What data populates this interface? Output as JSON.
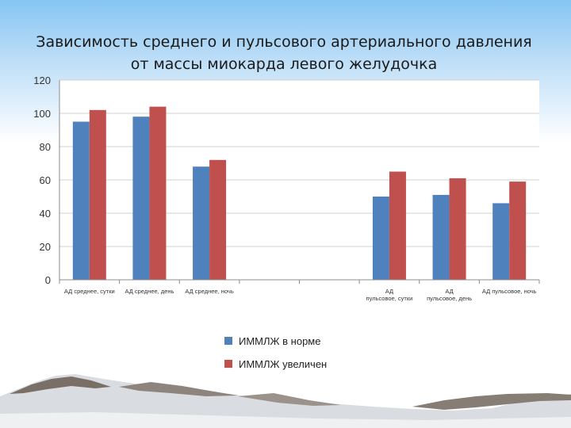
{
  "chart_data": {
    "type": "bar",
    "title_lines": [
      "Зависимость среднего и пульсового артериального давления",
      "от массы миокарда левого желудочка"
    ],
    "categories": [
      [
        "АД среднее, сутки"
      ],
      [
        "АД среднее, день"
      ],
      [
        "АД среднее, ночь"
      ],
      [
        ""
      ],
      [
        ""
      ],
      [
        "АД",
        "пульсовое, сутки"
      ],
      [
        "АД",
        "пульсовое, день"
      ],
      [
        "АД пульсовое, ночь"
      ]
    ],
    "series": [
      {
        "name": "ИММЛЖ в норме",
        "color": "#4f81bd",
        "values": [
          95,
          98,
          68,
          null,
          null,
          50,
          51,
          46
        ]
      },
      {
        "name": "ИММЛЖ увеличен",
        "color": "#c0504d",
        "values": [
          102,
          104,
          72,
          null,
          null,
          65,
          61,
          59
        ]
      }
    ],
    "ylim": [
      0,
      120
    ],
    "yticks": [
      0,
      20,
      40,
      60,
      80,
      100,
      120
    ],
    "grid": true,
    "legend_position": "bottom"
  }
}
